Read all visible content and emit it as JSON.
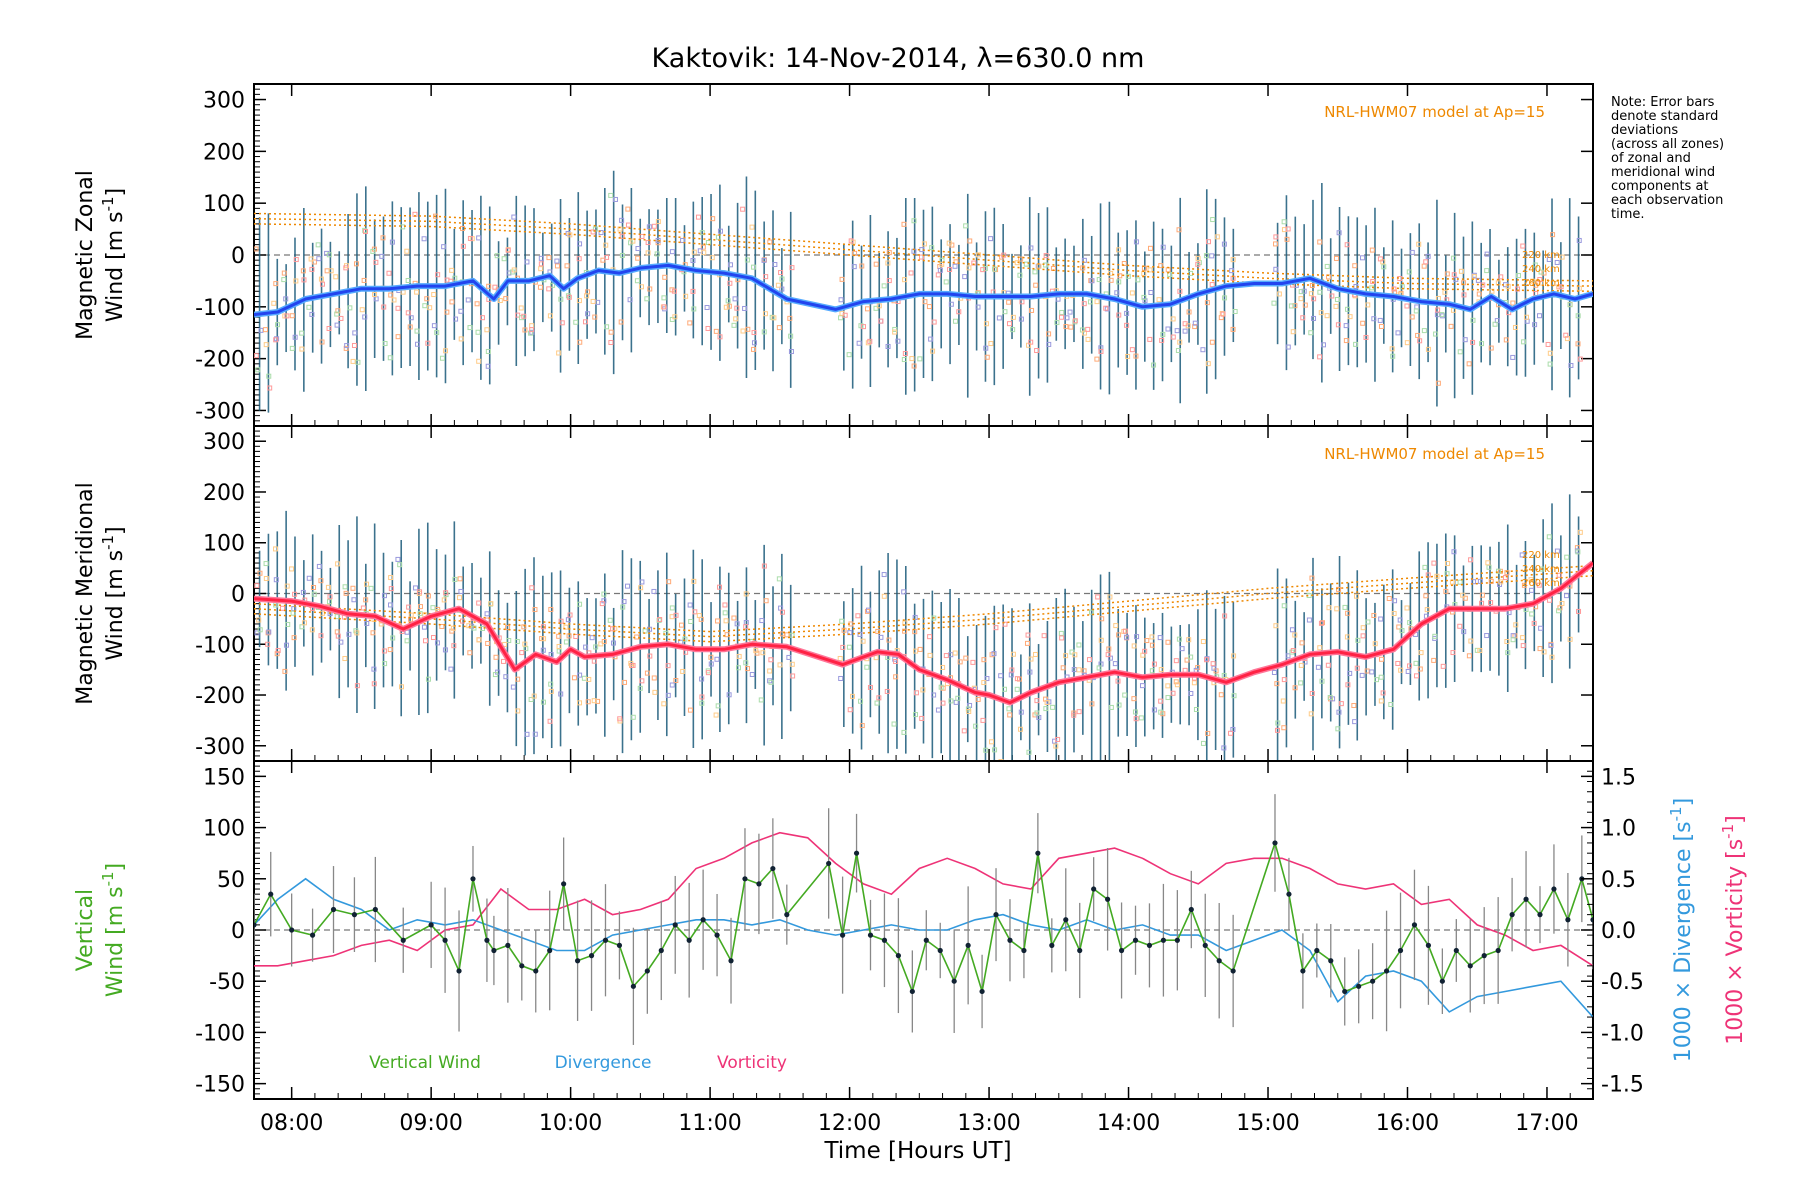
{
  "figure": {
    "title": "Kaktovik: 14-Nov-2014, λ=630.0 nm",
    "note": "Note: Error bars\ndenote standard\ndeviations\n(across all zones)\nof zonal and\nmeridional wind\ncomponents at\neach observation\ntime.",
    "xlabel": "Time [Hours UT]",
    "xticks": [
      "08:00",
      "09:00",
      "10:00",
      "11:00",
      "12:00",
      "13:00",
      "14:00",
      "15:00",
      "16:00",
      "17:00"
    ]
  },
  "colors": {
    "zonal": "#2244ee",
    "zonal_halo": "#55aaff",
    "meridional": "#ff2244",
    "meridional_halo": "#ff7799",
    "vertical": "#44aa22",
    "divergence": "#3399dd",
    "vorticity": "#ee3377",
    "hwm": "#ee8800",
    "errorbar_z": "#1a5a7a",
    "errorbar_v": "#888888"
  },
  "chart_data": [
    {
      "type": "line",
      "panel": "zonal",
      "ylabel_line1": "Magnetic Zonal",
      "ylabel_line2_prefix": "Wind [m s",
      "ylabel_sup": "-1",
      "ylabel_suffix": "]",
      "ylim": [
        -330,
        330
      ],
      "yticks": [
        300,
        200,
        100,
        0,
        -100,
        -200,
        -300
      ],
      "xlim": [
        7.73,
        17.33
      ],
      "model_label": "NRL-HWM07 model at Ap=15",
      "model_heights": [
        "220 km",
        "240 km",
        "260 km"
      ],
      "series": [
        {
          "x": [
            7.73,
            7.9,
            8.1,
            8.3,
            8.5,
            8.7,
            8.9,
            9.1,
            9.3,
            9.45,
            9.55,
            9.7,
            9.85,
            9.95,
            10.05,
            10.2,
            10.35,
            10.5,
            10.7,
            10.9,
            11.1,
            11.3,
            11.55,
            11.9,
            12.1,
            12.3,
            12.5,
            12.7,
            12.9,
            13.1,
            13.3,
            13.5,
            13.7,
            13.9,
            14.1,
            14.3,
            14.5,
            14.7,
            14.9,
            15.1,
            15.3,
            15.5,
            15.7,
            15.9,
            16.1,
            16.3,
            16.45,
            16.6,
            16.75,
            16.9,
            17.05,
            17.2,
            17.33
          ],
          "y": [
            -115,
            -110,
            -85,
            -75,
            -65,
            -65,
            -60,
            -60,
            -50,
            -85,
            -50,
            -50,
            -40,
            -65,
            -45,
            -30,
            -35,
            -25,
            -20,
            -30,
            -35,
            -45,
            -85,
            -105,
            -90,
            -85,
            -75,
            -75,
            -80,
            -80,
            -80,
            -75,
            -75,
            -85,
            -100,
            -95,
            -75,
            -60,
            -55,
            -55,
            -45,
            -65,
            -75,
            -80,
            -90,
            -95,
            -105,
            -80,
            -105,
            -85,
            -75,
            -85,
            -75
          ]
        },
        {
          "name": "220 km",
          "x": [
            7.73,
            9,
            10,
            11,
            12,
            13,
            14,
            15,
            16,
            17.33
          ],
          "y": [
            80,
            75,
            60,
            40,
            20,
            0,
            -20,
            -35,
            -45,
            -50
          ]
        },
        {
          "name": "240 km",
          "x": [
            7.73,
            9,
            10,
            11,
            12,
            13,
            14,
            15,
            16,
            17.33
          ],
          "y": [
            70,
            65,
            50,
            30,
            10,
            -10,
            -30,
            -45,
            -55,
            -60
          ]
        },
        {
          "name": "260 km",
          "x": [
            7.73,
            9,
            10,
            11,
            12,
            13,
            14,
            15,
            16,
            17.33
          ],
          "y": [
            60,
            55,
            40,
            20,
            0,
            -20,
            -40,
            -55,
            -65,
            -70
          ]
        }
      ]
    },
    {
      "type": "line",
      "panel": "meridional",
      "ylabel_line1": "Magnetic Meridional",
      "ylabel_line2_prefix": "Wind [m s",
      "ylabel_sup": "-1",
      "ylabel_suffix": "]",
      "ylim": [
        -330,
        330
      ],
      "yticks": [
        300,
        200,
        100,
        0,
        -100,
        -200,
        -300
      ],
      "xlim": [
        7.73,
        17.33
      ],
      "model_label": "NRL-HWM07 model at Ap=15",
      "model_heights": [
        "220 km",
        "240 km",
        "260 km"
      ],
      "series": [
        {
          "x": [
            7.73,
            8.0,
            8.2,
            8.4,
            8.6,
            8.8,
            9.0,
            9.2,
            9.4,
            9.6,
            9.75,
            9.9,
            10.0,
            10.1,
            10.3,
            10.5,
            10.7,
            10.9,
            11.1,
            11.3,
            11.55,
            11.95,
            12.2,
            12.35,
            12.5,
            12.7,
            12.9,
            13.0,
            13.15,
            13.3,
            13.5,
            13.7,
            13.9,
            14.1,
            14.3,
            14.5,
            14.7,
            14.9,
            15.1,
            15.3,
            15.5,
            15.7,
            15.9,
            16.1,
            16.3,
            16.5,
            16.7,
            16.9,
            17.1,
            17.33
          ],
          "y": [
            -10,
            -15,
            -25,
            -40,
            -45,
            -70,
            -45,
            -30,
            -60,
            -150,
            -120,
            -135,
            -110,
            -125,
            -120,
            -105,
            -100,
            -110,
            -110,
            -100,
            -105,
            -140,
            -115,
            -120,
            -150,
            -170,
            -195,
            -200,
            -215,
            -195,
            -175,
            -165,
            -155,
            -165,
            -160,
            -160,
            -175,
            -155,
            -140,
            -120,
            -115,
            -125,
            -110,
            -60,
            -30,
            -30,
            -30,
            -20,
            10,
            60
          ]
        },
        {
          "name": "220 km",
          "x": [
            7.73,
            9,
            10,
            11,
            12,
            13,
            14,
            15,
            16,
            17.33
          ],
          "y": [
            -20,
            -40,
            -60,
            -75,
            -60,
            -40,
            -15,
            10,
            30,
            55
          ]
        },
        {
          "name": "240 km",
          "x": [
            7.73,
            9,
            10,
            11,
            12,
            13,
            14,
            15,
            16,
            17.33
          ],
          "y": [
            -30,
            -50,
            -70,
            -85,
            -70,
            -50,
            -25,
            0,
            20,
            45
          ]
        },
        {
          "name": "260 km",
          "x": [
            7.73,
            9,
            10,
            11,
            12,
            13,
            14,
            15,
            16,
            17.33
          ],
          "y": [
            -40,
            -60,
            -80,
            -95,
            -80,
            -60,
            -35,
            -10,
            10,
            35
          ]
        }
      ]
    },
    {
      "type": "line",
      "panel": "vertical",
      "ylabel_line1": "Vertical",
      "ylabel_line2_prefix": "Wind [m s",
      "ylabel_sup": "-1",
      "ylabel_suffix": "]",
      "ylim": [
        -165,
        165
      ],
      "yticks": [
        150,
        100,
        50,
        0,
        -50,
        -100,
        -150
      ],
      "xlim": [
        7.73,
        17.33
      ],
      "y2lim": [
        -1.65,
        1.65
      ],
      "y2ticks": [
        "1.5",
        "1.0",
        "0.5",
        "0.0",
        "-0.5",
        "-1.0",
        "-1.5"
      ],
      "y2label_div_prefix": "1000 × Divergence [s",
      "y2label_vort_prefix": "1000 × Vorticity [s",
      "y2label_sup": "-1",
      "y2label_suffix": "]",
      "legend": [
        "Vertical Wind",
        "Divergence",
        "Vorticity"
      ],
      "series": [
        {
          "name": "Vertical Wind",
          "x": [
            7.73,
            7.85,
            8.0,
            8.15,
            8.3,
            8.45,
            8.6,
            8.8,
            9.0,
            9.1,
            9.2,
            9.3,
            9.4,
            9.45,
            9.55,
            9.65,
            9.75,
            9.85,
            9.95,
            10.05,
            10.15,
            10.25,
            10.35,
            10.45,
            10.55,
            10.65,
            10.75,
            10.85,
            10.95,
            11.05,
            11.15,
            11.25,
            11.35,
            11.45,
            11.55,
            11.85,
            11.95,
            12.05,
            12.15,
            12.25,
            12.35,
            12.45,
            12.55,
            12.65,
            12.75,
            12.85,
            12.95,
            13.05,
            13.15,
            13.25,
            13.35,
            13.45,
            13.55,
            13.65,
            13.75,
            13.85,
            13.95,
            14.05,
            14.15,
            14.25,
            14.35,
            14.45,
            14.55,
            14.65,
            14.75,
            15.05,
            15.15,
            15.25,
            15.35,
            15.45,
            15.55,
            15.65,
            15.75,
            15.85,
            15.95,
            16.05,
            16.15,
            16.25,
            16.35,
            16.45,
            16.55,
            16.65,
            16.75,
            16.85,
            16.95,
            17.05,
            17.15,
            17.25,
            17.33
          ],
          "y": [
            5,
            35,
            0,
            -5,
            20,
            15,
            20,
            -10,
            5,
            -10,
            -40,
            50,
            -10,
            -20,
            -15,
            -35,
            -40,
            -20,
            45,
            -30,
            -25,
            -10,
            -15,
            -55,
            -40,
            -20,
            5,
            -10,
            10,
            -5,
            -30,
            50,
            45,
            60,
            15,
            65,
            -5,
            75,
            -5,
            -10,
            -25,
            -60,
            -10,
            -20,
            -50,
            -15,
            -60,
            15,
            -10,
            -20,
            75,
            -15,
            10,
            -20,
            40,
            30,
            -20,
            -10,
            -15,
            -10,
            -10,
            20,
            -15,
            -30,
            -40,
            85,
            35,
            -40,
            -20,
            -30,
            -60,
            -55,
            -50,
            -40,
            -20,
            5,
            -15,
            -50,
            -20,
            -35,
            -25,
            -20,
            15,
            30,
            15,
            40,
            10,
            50,
            10
          ]
        },
        {
          "name": "Divergence",
          "x": [
            7.73,
            7.9,
            8.1,
            8.3,
            8.5,
            8.7,
            8.9,
            9.1,
            9.3,
            9.5,
            9.7,
            9.9,
            10.1,
            10.3,
            10.5,
            10.7,
            10.9,
            11.1,
            11.3,
            11.5,
            11.7,
            11.9,
            12.1,
            12.3,
            12.5,
            12.7,
            12.9,
            13.1,
            13.3,
            13.5,
            13.7,
            13.9,
            14.1,
            14.3,
            14.5,
            14.7,
            14.9,
            15.1,
            15.3,
            15.5,
            15.7,
            15.9,
            16.1,
            16.3,
            16.5,
            16.7,
            16.9,
            17.1,
            17.33
          ],
          "y": [
            0.05,
            0.3,
            0.5,
            0.3,
            0.2,
            0.0,
            0.1,
            0.05,
            0.1,
            0.0,
            -0.1,
            -0.2,
            -0.2,
            -0.05,
            0.0,
            0.05,
            0.1,
            0.1,
            0.05,
            0.1,
            0.0,
            -0.05,
            0.0,
            0.05,
            0.0,
            0.0,
            0.1,
            0.15,
            0.05,
            0.0,
            0.1,
            0.0,
            0.05,
            -0.05,
            -0.05,
            -0.2,
            -0.1,
            0.0,
            -0.2,
            -0.7,
            -0.45,
            -0.4,
            -0.5,
            -0.8,
            -0.65,
            -0.6,
            -0.55,
            -0.5,
            -0.85
          ]
        },
        {
          "name": "Vorticity",
          "x": [
            7.73,
            7.9,
            8.1,
            8.3,
            8.5,
            8.7,
            8.9,
            9.1,
            9.3,
            9.5,
            9.7,
            9.9,
            10.1,
            10.3,
            10.5,
            10.7,
            10.9,
            11.1,
            11.3,
            11.5,
            11.7,
            11.9,
            12.1,
            12.3,
            12.5,
            12.7,
            12.9,
            13.1,
            13.3,
            13.5,
            13.7,
            13.9,
            14.1,
            14.3,
            14.5,
            14.7,
            14.9,
            15.1,
            15.3,
            15.5,
            15.7,
            15.9,
            16.1,
            16.3,
            16.5,
            16.7,
            16.9,
            17.1,
            17.33
          ],
          "y": [
            -0.35,
            -0.35,
            -0.3,
            -0.25,
            -0.15,
            -0.1,
            -0.2,
            0.0,
            0.05,
            0.4,
            0.2,
            0.2,
            0.3,
            0.15,
            0.2,
            0.3,
            0.6,
            0.7,
            0.85,
            0.95,
            0.9,
            0.65,
            0.45,
            0.35,
            0.6,
            0.7,
            0.6,
            0.45,
            0.4,
            0.7,
            0.75,
            0.8,
            0.7,
            0.55,
            0.45,
            0.65,
            0.7,
            0.7,
            0.6,
            0.45,
            0.4,
            0.45,
            0.25,
            0.3,
            0.05,
            -0.05,
            -0.2,
            -0.15,
            -0.35
          ]
        }
      ]
    }
  ]
}
